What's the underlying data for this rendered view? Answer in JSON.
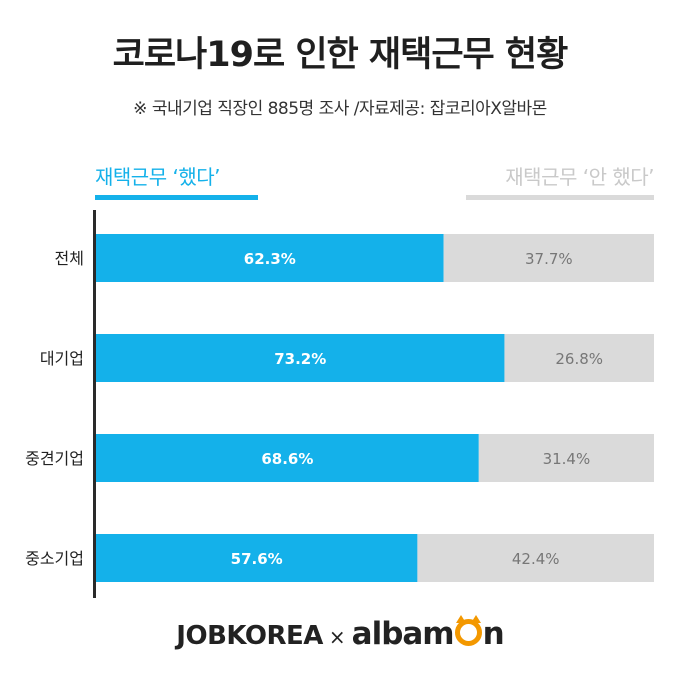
{
  "header": {
    "title": "코로나19로 인한 재택근무 현황",
    "subtitle": "※ 국내기업 직장인 885명 조사 /자료제공: 잡코리아X알바몬"
  },
  "legend": {
    "did": "재택근무 ‘했다’",
    "did_not": "재택근무 ‘안 했다’"
  },
  "colors": {
    "did": "#14b1ea",
    "did_not": "#dadada",
    "did_label": "#ffffff",
    "did_not_label": "#777777"
  },
  "chart_data": {
    "type": "bar",
    "orientation": "horizontal",
    "stacked": true,
    "categories": [
      "전체",
      "대기업",
      "중견기업",
      "중소기업"
    ],
    "series": [
      {
        "name": "재택근무 ‘했다’",
        "values": [
          62.3,
          73.2,
          68.6,
          57.6
        ],
        "labels": [
          "62.3%",
          "73.2%",
          "68.6%",
          "57.6%"
        ]
      },
      {
        "name": "재택근무 ‘안 했다’",
        "values": [
          37.7,
          26.8,
          31.4,
          42.4
        ],
        "labels": [
          "37.7%",
          "26.8%",
          "31.4%",
          "42.4%"
        ]
      }
    ],
    "xlim": [
      0,
      100
    ],
    "legend_position": "top"
  },
  "footer": {
    "brand_left": "JOBKOREA",
    "separator": "×",
    "brand_right_start": "albam",
    "brand_right_end": "n"
  }
}
